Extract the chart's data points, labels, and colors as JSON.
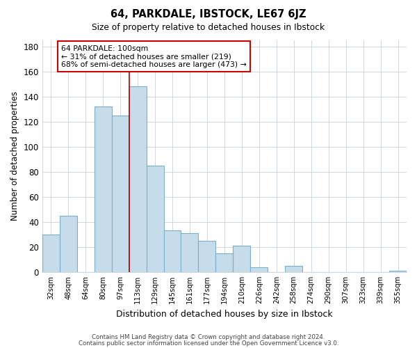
{
  "title": "64, PARKDALE, IBSTOCK, LE67 6JZ",
  "subtitle": "Size of property relative to detached houses in Ibstock",
  "xlabel": "Distribution of detached houses by size in Ibstock",
  "ylabel": "Number of detached properties",
  "footer_line1": "Contains HM Land Registry data © Crown copyright and database right 2024.",
  "footer_line2": "Contains public sector information licensed under the Open Government Licence v3.0.",
  "categories": [
    "32sqm",
    "48sqm",
    "64sqm",
    "80sqm",
    "97sqm",
    "113sqm",
    "129sqm",
    "145sqm",
    "161sqm",
    "177sqm",
    "194sqm",
    "210sqm",
    "226sqm",
    "242sqm",
    "258sqm",
    "274sqm",
    "290sqm",
    "307sqm",
    "323sqm",
    "339sqm",
    "355sqm"
  ],
  "values": [
    30,
    45,
    0,
    132,
    125,
    148,
    85,
    33,
    31,
    25,
    15,
    21,
    4,
    0,
    5,
    0,
    0,
    0,
    0,
    0,
    1
  ],
  "bar_color": "#c6dcea",
  "bar_edge_color": "#7aafc8",
  "highlight_line_color": "#aa0000",
  "red_line_bar_index": 4,
  "ylim": [
    0,
    185
  ],
  "yticks": [
    0,
    20,
    40,
    60,
    80,
    100,
    120,
    140,
    160,
    180
  ],
  "annotation_line1": "64 PARKDALE: 100sqm",
  "annotation_line2": "← 31% of detached houses are smaller (219)",
  "annotation_line3": "68% of semi-detached houses are larger (473) →",
  "background_color": "#ffffff",
  "grid_color": "#d0d8e0"
}
